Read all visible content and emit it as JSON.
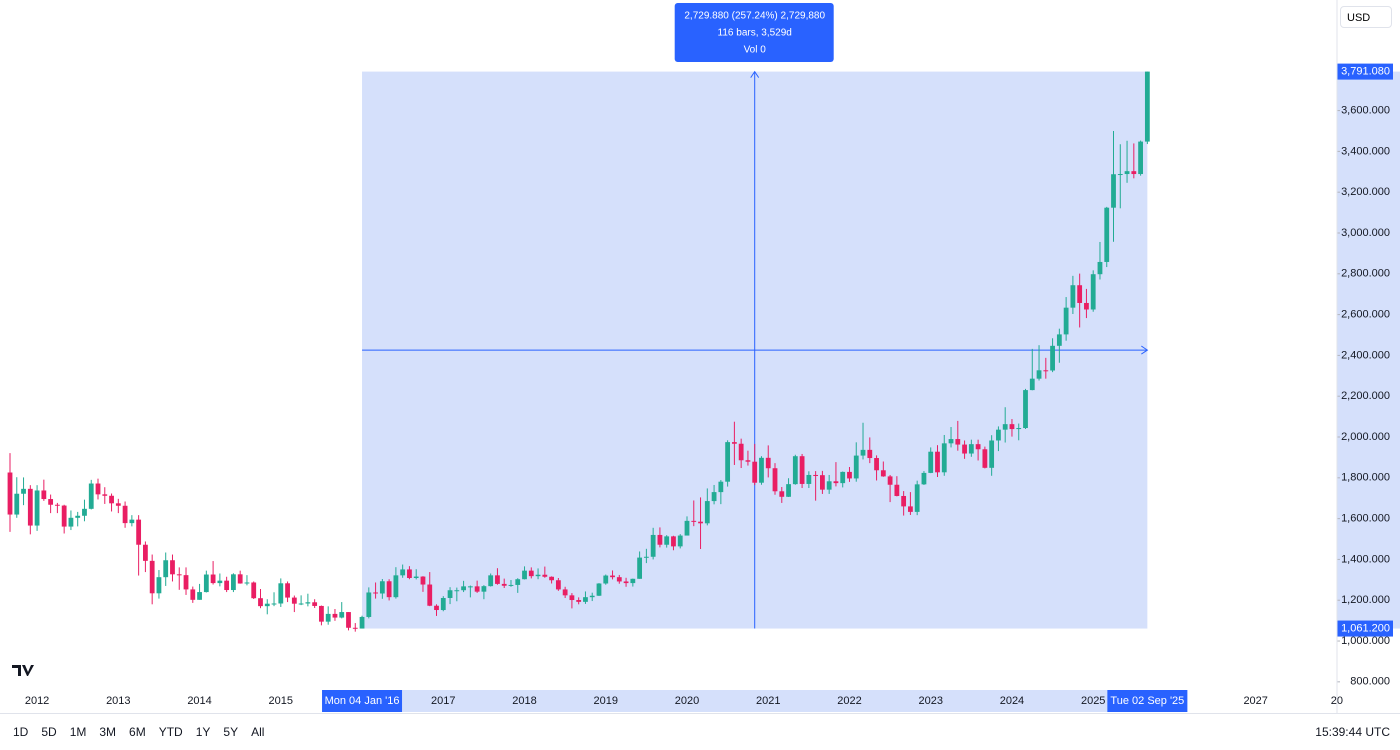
{
  "chart_data": {
    "type": "candlestick",
    "x": [
      "2011-09",
      "2011-10",
      "2011-11",
      "2011-12",
      "2012-01",
      "2012-02",
      "2012-03",
      "2012-04",
      "2012-05",
      "2012-06",
      "2012-07",
      "2012-08",
      "2012-09",
      "2012-10",
      "2012-11",
      "2012-12",
      "2013-01",
      "2013-02",
      "2013-03",
      "2013-04",
      "2013-05",
      "2013-06",
      "2013-07",
      "2013-08",
      "2013-09",
      "2013-10",
      "2013-11",
      "2013-12",
      "2014-01",
      "2014-02",
      "2014-03",
      "2014-04",
      "2014-05",
      "2014-06",
      "2014-07",
      "2014-08",
      "2014-09",
      "2014-10",
      "2014-11",
      "2014-12",
      "2015-01",
      "2015-02",
      "2015-03",
      "2015-04",
      "2015-05",
      "2015-06",
      "2015-07",
      "2015-08",
      "2015-09",
      "2015-10",
      "2015-11",
      "2015-12",
      "2016-01",
      "2016-02",
      "2016-03",
      "2016-04",
      "2016-05",
      "2016-06",
      "2016-07",
      "2016-08",
      "2016-09",
      "2016-10",
      "2016-11",
      "2016-12",
      "2017-01",
      "2017-02",
      "2017-03",
      "2017-04",
      "2017-05",
      "2017-06",
      "2017-07",
      "2017-08",
      "2017-09",
      "2017-10",
      "2017-11",
      "2017-12",
      "2018-01",
      "2018-02",
      "2018-03",
      "2018-04",
      "2018-05",
      "2018-06",
      "2018-07",
      "2018-08",
      "2018-09",
      "2018-10",
      "2018-11",
      "2018-12",
      "2019-01",
      "2019-02",
      "2019-03",
      "2019-04",
      "2019-05",
      "2019-06",
      "2019-07",
      "2019-08",
      "2019-09",
      "2019-10",
      "2019-11",
      "2019-12",
      "2020-01",
      "2020-02",
      "2020-03",
      "2020-04",
      "2020-05",
      "2020-06",
      "2020-07",
      "2020-08",
      "2020-09",
      "2020-10",
      "2020-11",
      "2020-12",
      "2021-01",
      "2021-02",
      "2021-03",
      "2021-04",
      "2021-05",
      "2021-06",
      "2021-07",
      "2021-08",
      "2021-09",
      "2021-10",
      "2021-11",
      "2021-12",
      "2022-01",
      "2022-02",
      "2022-03",
      "2022-04",
      "2022-05",
      "2022-06",
      "2022-07",
      "2022-08",
      "2022-09",
      "2022-10",
      "2022-11",
      "2022-12",
      "2023-01",
      "2023-02",
      "2023-03",
      "2023-04",
      "2023-05",
      "2023-06",
      "2023-07",
      "2023-08",
      "2023-09",
      "2023-10",
      "2023-11",
      "2023-12",
      "2024-01",
      "2024-02",
      "2024-03",
      "2024-04",
      "2024-05",
      "2024-06",
      "2024-07",
      "2024-08",
      "2024-09",
      "2024-10",
      "2024-11",
      "2024-12",
      "2025-01",
      "2025-02",
      "2025-03",
      "2025-04",
      "2025-05",
      "2025-06",
      "2025-07",
      "2025-08",
      "2025-09"
    ],
    "open": [
      1826,
      1620,
      1722,
      1746,
      1566,
      1738,
      1696,
      1668,
      1664,
      1561,
      1604,
      1614,
      1648,
      1772,
      1719,
      1712,
      1675,
      1663,
      1578,
      1595,
      1472,
      1393,
      1234,
      1313,
      1396,
      1327,
      1323,
      1253,
      1202,
      1240,
      1326,
      1284,
      1296,
      1250,
      1327,
      1282,
      1287,
      1210,
      1171,
      1183,
      1184,
      1283,
      1213,
      1183,
      1184,
      1190,
      1172,
      1095,
      1133,
      1115,
      1142,
      1065,
      1061.2,
      1118,
      1238,
      1233,
      1293,
      1215,
      1322,
      1351,
      1309,
      1316,
      1277,
      1173,
      1152,
      1211,
      1249,
      1249,
      1268,
      1268,
      1242,
      1269,
      1322,
      1280,
      1271,
      1275,
      1303,
      1345,
      1318,
      1325,
      1315,
      1298,
      1253,
      1224,
      1201,
      1192,
      1215,
      1222,
      1282,
      1321,
      1313,
      1292,
      1284,
      1305,
      1409,
      1413,
      1520,
      1472,
      1513,
      1464,
      1517,
      1589,
      1585,
      1577,
      1686,
      1730,
      1781,
      1975,
      1967,
      1886,
      1879,
      1776,
      1898,
      1847,
      1734,
      1707,
      1769,
      1906,
      1770,
      1814,
      1813,
      1742,
      1783,
      1774,
      1829,
      1797,
      1909,
      1937,
      1897,
      1837,
      1807,
      1766,
      1711,
      1660,
      1633,
      1768,
      1824,
      1928,
      1827,
      1969,
      1990,
      1963,
      1919,
      1965,
      1940,
      1849,
      1983,
      2036,
      2063,
      2039,
      2044,
      2230,
      2286,
      2327,
      2326,
      2447,
      2503,
      2634,
      2744,
      2657,
      2625,
      2798,
      2858,
      3124,
      3288,
      3289,
      3303,
      3289,
      3448
    ],
    "high": [
      1921,
      1803,
      1802,
      1764,
      1764,
      1791,
      1718,
      1677,
      1668,
      1640,
      1633,
      1693,
      1790,
      1796,
      1754,
      1723,
      1697,
      1684,
      1617,
      1617,
      1488,
      1424,
      1348,
      1434,
      1424,
      1361,
      1361,
      1267,
      1280,
      1345,
      1392,
      1331,
      1315,
      1332,
      1345,
      1323,
      1292,
      1255,
      1205,
      1239,
      1307,
      1292,
      1223,
      1224,
      1232,
      1205,
      1174,
      1170,
      1157,
      1191,
      1142,
      1088,
      1124,
      1263,
      1287,
      1304,
      1303,
      1362,
      1375,
      1367,
      1352,
      1318,
      1338,
      1180,
      1220,
      1264,
      1262,
      1295,
      1272,
      1296,
      1274,
      1331,
      1357,
      1306,
      1299,
      1308,
      1366,
      1361,
      1356,
      1365,
      1317,
      1309,
      1266,
      1235,
      1214,
      1243,
      1237,
      1284,
      1326,
      1346,
      1324,
      1310,
      1306,
      1439,
      1452,
      1555,
      1557,
      1519,
      1516,
      1524,
      1611,
      1689,
      1704,
      1748,
      1765,
      1789,
      1984,
      2075,
      1992,
      1933,
      1966,
      1906,
      1959,
      1872,
      1755,
      1798,
      1913,
      1917,
      1832,
      1833,
      1834,
      1814,
      1877,
      1831,
      1853,
      1974,
      2070,
      1998,
      1910,
      1880,
      1814,
      1808,
      1735,
      1730,
      1786,
      1833,
      1949,
      1960,
      2010,
      2049,
      2079,
      1983,
      1987,
      1987,
      1953,
      2009,
      2052,
      2146,
      2088,
      2066,
      2236,
      2432,
      2450,
      2388,
      2484,
      2531,
      2686,
      2790,
      2801,
      2726,
      2817,
      2956,
      3128,
      3500,
      3435,
      3452,
      3439,
      3453,
      3791.08
    ],
    "low": [
      1535,
      1604,
      1666,
      1523,
      1540,
      1687,
      1627,
      1627,
      1527,
      1544,
      1562,
      1587,
      1645,
      1694,
      1672,
      1635,
      1627,
      1555,
      1562,
      1321,
      1338,
      1180,
      1208,
      1270,
      1292,
      1251,
      1226,
      1187,
      1202,
      1238,
      1277,
      1268,
      1240,
      1240,
      1281,
      1273,
      1206,
      1161,
      1131,
      1171,
      1167,
      1191,
      1142,
      1176,
      1170,
      1162,
      1077,
      1080,
      1099,
      1111,
      1052,
      1046,
      1061.2,
      1111,
      1208,
      1207,
      1199,
      1208,
      1310,
      1303,
      1302,
      1241,
      1171,
      1123,
      1146,
      1181,
      1195,
      1240,
      1214,
      1236,
      1205,
      1267,
      1276,
      1260,
      1266,
      1236,
      1302,
      1307,
      1303,
      1310,
      1282,
      1246,
      1211,
      1160,
      1180,
      1182,
      1196,
      1221,
      1276,
      1302,
      1281,
      1266,
      1267,
      1305,
      1382,
      1400,
      1459,
      1458,
      1445,
      1454,
      1517,
      1563,
      1451,
      1567,
      1670,
      1671,
      1757,
      1863,
      1848,
      1860,
      1764,
      1766,
      1802,
      1717,
      1677,
      1706,
      1766,
      1750,
      1750,
      1688,
      1721,
      1721,
      1758,
      1753,
      1780,
      1781,
      1890,
      1872,
      1787,
      1805,
      1681,
      1709,
      1615,
      1618,
      1617,
      1765,
      1823,
      1804,
      1810,
      1949,
      1933,
      1893,
      1903,
      1885,
      1846,
      1810,
      1931,
      1973,
      2002,
      1984,
      2039,
      2229,
      2277,
      2286,
      2318,
      2364,
      2472,
      2603,
      2537,
      2583,
      2614,
      2772,
      2833,
      2957,
      3121,
      3246,
      3268,
      3281,
      3436
    ],
    "close": [
      1620,
      1722,
      1746,
      1566,
      1738,
      1696,
      1668,
      1664,
      1561,
      1604,
      1614,
      1648,
      1772,
      1719,
      1712,
      1675,
      1663,
      1578,
      1595,
      1472,
      1393,
      1234,
      1313,
      1396,
      1327,
      1323,
      1253,
      1202,
      1240,
      1326,
      1284,
      1296,
      1250,
      1327,
      1282,
      1287,
      1210,
      1171,
      1183,
      1184,
      1283,
      1213,
      1183,
      1184,
      1190,
      1172,
      1095,
      1133,
      1115,
      1142,
      1065,
      1061,
      1118,
      1238,
      1233,
      1293,
      1215,
      1322,
      1351,
      1309,
      1316,
      1277,
      1173,
      1152,
      1211,
      1249,
      1249,
      1268,
      1268,
      1242,
      1269,
      1322,
      1280,
      1271,
      1275,
      1303,
      1345,
      1318,
      1325,
      1315,
      1298,
      1253,
      1224,
      1201,
      1192,
      1215,
      1222,
      1282,
      1321,
      1313,
      1292,
      1284,
      1305,
      1409,
      1413,
      1520,
      1472,
      1513,
      1464,
      1517,
      1589,
      1585,
      1577,
      1686,
      1730,
      1781,
      1975,
      1967,
      1886,
      1879,
      1776,
      1898,
      1847,
      1734,
      1707,
      1769,
      1906,
      1770,
      1814,
      1813,
      1742,
      1783,
      1774,
      1829,
      1797,
      1909,
      1937,
      1897,
      1837,
      1807,
      1766,
      1711,
      1660,
      1633,
      1768,
      1824,
      1928,
      1827,
      1969,
      1990,
      1963,
      1919,
      1965,
      1940,
      1849,
      1983,
      2036,
      2063,
      2039,
      2044,
      2230,
      2286,
      2327,
      2326,
      2447,
      2503,
      2634,
      2744,
      2657,
      2625,
      2798,
      2858,
      3124,
      3288,
      3289,
      3303,
      3289,
      3448,
      3791.08
    ],
    "up_color": "#22ab94",
    "down_color": "#e91e63",
    "ylim": [
      760,
      4142
    ],
    "yticks": [
      {
        "value": 800,
        "label": "800.000"
      },
      {
        "value": 1000,
        "label": "1,000.000"
      },
      {
        "value": 1200,
        "label": "1,200.000"
      },
      {
        "value": 1400,
        "label": "1,400.000"
      },
      {
        "value": 1600,
        "label": "1,600.000"
      },
      {
        "value": 1800,
        "label": "1,800.000"
      },
      {
        "value": 2000,
        "label": "2,000.000"
      },
      {
        "value": 2200,
        "label": "2,200.000"
      },
      {
        "value": 2400,
        "label": "2,400.000"
      },
      {
        "value": 2600,
        "label": "2,600.000"
      },
      {
        "value": 2800,
        "label": "2,800.000"
      },
      {
        "value": 3000,
        "label": "3,000.000"
      },
      {
        "value": 3200,
        "label": "3,200.000"
      },
      {
        "value": 3400,
        "label": "3,400.000"
      },
      {
        "value": 3600,
        "label": "3,600.000"
      }
    ],
    "xticks": [
      {
        "value": "2012-01",
        "label": "2012"
      },
      {
        "value": "2013-01",
        "label": "2013"
      },
      {
        "value": "2014-01",
        "label": "2014"
      },
      {
        "value": "2015-01",
        "label": "2015"
      },
      {
        "value": "2017-01",
        "label": "2017"
      },
      {
        "value": "2018-01",
        "label": "2018"
      },
      {
        "value": "2019-01",
        "label": "2019"
      },
      {
        "value": "2020-01",
        "label": "2020"
      },
      {
        "value": "2021-01",
        "label": "2021"
      },
      {
        "value": "2022-01",
        "label": "2022"
      },
      {
        "value": "2023-01",
        "label": "2023"
      },
      {
        "value": "2024-01",
        "label": "2024"
      },
      {
        "value": "2025-01",
        "label": "2025"
      },
      {
        "value": "2027-01",
        "label": "2027"
      },
      {
        "value": "2028-01",
        "label": "20"
      }
    ],
    "measure": {
      "start": {
        "value": "2016-01",
        "label": "Mon 04 Jan '16"
      },
      "end": {
        "value": "2025-09",
        "label": "Tue 02 Sep '25"
      },
      "from": {
        "value": 1061.2,
        "label": "1,061.200"
      },
      "to": {
        "value": 3791.08,
        "label": "3,791.080"
      },
      "color": "#2962ff",
      "fill": "#d5e0fb",
      "lines": [
        "2,729.880 (257.24%) 2,729,880",
        "116 bars, 3,529d",
        "Vol 0"
      ]
    }
  },
  "ui": {
    "currency": "USD",
    "ranges": [
      "1D",
      "5D",
      "1M",
      "3M",
      "6M",
      "YTD",
      "1Y",
      "5Y",
      "All"
    ],
    "clock": "15:39:44 UTC"
  }
}
